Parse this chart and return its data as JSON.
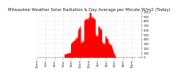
{
  "title": "Milwaukee Weather Solar Radiation & Day Average per Minute W/m2 (Today)",
  "background_color": "#ffffff",
  "plot_bg_color": "#ffffff",
  "grid_color": "#cccccc",
  "bar_color": "#ff0000",
  "blue_bar_color": "#0000ff",
  "ylim": [
    0,
    1000
  ],
  "yticks": [
    0,
    100,
    200,
    300,
    400,
    500,
    600,
    700,
    800,
    900,
    1000
  ],
  "num_points": 1440,
  "title_fontsize": 3.8,
  "tick_fontsize": 2.8,
  "blue_minute": 175,
  "blue_value": 75
}
